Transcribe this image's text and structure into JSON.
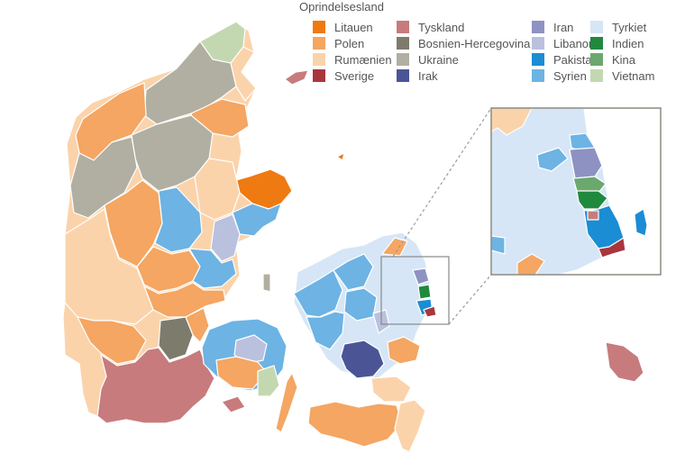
{
  "legend": {
    "title": "Oprindelsesland",
    "columns": [
      [
        {
          "label": "Litauen",
          "color": "#ef7a12"
        },
        {
          "label": "Polen",
          "color": "#f4a662"
        },
        {
          "label": "Rumænien",
          "color": "#fbd3ab"
        },
        {
          "label": "Sverige",
          "color": "#a9363c"
        }
      ],
      [
        {
          "label": "Tyskland",
          "color": "#c77b7d"
        },
        {
          "label": "Bosnien-Hercegovina",
          "color": "#7d7b6c"
        },
        {
          "label": "Ukraine",
          "color": "#b0afa2"
        },
        {
          "label": "Irak",
          "color": "#4b5596"
        }
      ],
      [
        {
          "label": "Iran",
          "color": "#8e92c3"
        },
        {
          "label": "Libanon",
          "color": "#b9c1df"
        },
        {
          "label": "Pakistan",
          "color": "#1b8dd4"
        },
        {
          "label": "Syrien",
          "color": "#6db3e4"
        }
      ],
      [
        {
          "label": "Tyrkiet",
          "color": "#d6e6f7"
        },
        {
          "label": "Indien",
          "color": "#1f8a3e"
        },
        {
          "label": "Kina",
          "color": "#6aa86e"
        },
        {
          "label": "Vietnam",
          "color": "#c3d8b0"
        }
      ]
    ]
  }
}
